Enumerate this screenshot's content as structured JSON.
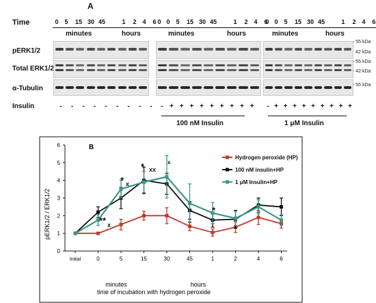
{
  "panel_a": {
    "letter": "A",
    "time_label": "Time",
    "minutes_label": "minutes",
    "hours_label": "hours",
    "time_ticks": [
      "0",
      "0",
      "5",
      "15",
      "30",
      "45",
      "1",
      "2",
      "4",
      "6"
    ],
    "rows": [
      "pERK1/2",
      "Total ERK1/2",
      "α-Tubulin"
    ],
    "insulin_label": "Insulin",
    "group_labels": [
      "100 nM Insulin",
      "1 μM Insulin"
    ],
    "kda_labels": [
      "- 55 kDa",
      "42 kDa",
      "- 55 kDa",
      "- 42 kDa",
      "- 55 kDa"
    ]
  },
  "panel_b": {
    "letter": "B",
    "x_group_minutes": "minutes",
    "x_group_hours": "hours",
    "annotations": [
      "**",
      "x",
      "*",
      "x",
      "*",
      "xx",
      "x",
      "*"
    ]
  },
  "chart_data": {
    "type": "line",
    "ylabel": "pERK1/2 / ERK1/2",
    "xlabel": "time of incubation with hydrogen peroxide",
    "categories": [
      "Initial",
      "0",
      "5",
      "15",
      "30",
      "45",
      "1",
      "2",
      "4",
      "6"
    ],
    "ylim": [
      0,
      6
    ],
    "yticks": [
      0,
      1,
      2,
      3,
      4,
      5,
      6
    ],
    "legend_position": "top-right",
    "series": [
      {
        "name": "Hydrogen peroxide (HP)",
        "color": "#c0392b",
        "values": [
          1,
          1,
          1.5,
          2,
          2,
          1.4,
          1.05,
          1.35,
          1.9,
          1.55
        ],
        "errors": [
          0,
          0.05,
          0.3,
          0.25,
          0.45,
          0.25,
          0.2,
          0.3,
          0.4,
          0.25
        ]
      },
      {
        "name": "100  nM insulin+HP",
        "color": "#111111",
        "values": [
          1,
          2.2,
          3,
          4,
          3.8,
          2.3,
          1.75,
          1.8,
          2.6,
          2.5
        ],
        "errors": [
          0,
          0.3,
          0.6,
          0.75,
          0.6,
          0.5,
          0.4,
          0.5,
          0.4,
          0.5
        ]
      },
      {
        "name": "1 μM Insulin+HP",
        "color": "#3a9688",
        "values": [
          1,
          1.75,
          3.5,
          3.9,
          4.2,
          2.7,
          2.15,
          1.85,
          2.5,
          1.75
        ],
        "errors": [
          0,
          0.3,
          0.5,
          0.6,
          1.2,
          1.1,
          0.6,
          0.4,
          0.4,
          0.3
        ]
      }
    ]
  }
}
